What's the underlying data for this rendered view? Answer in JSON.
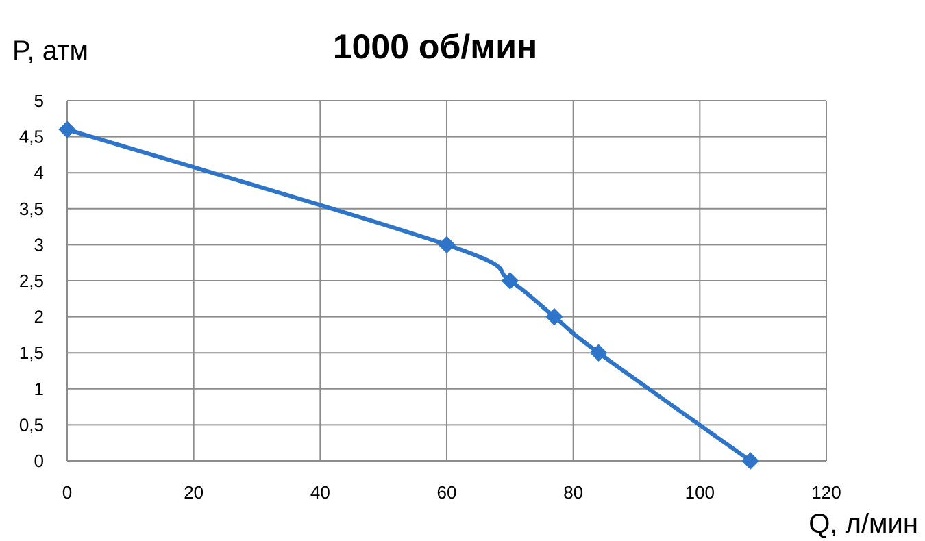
{
  "chart_data": {
    "type": "line",
    "title": "1000 об/мин",
    "ylabel": "P, атм",
    "xlabel": "Q, л/мин",
    "xlim": [
      0,
      120
    ],
    "ylim": [
      0,
      5
    ],
    "x_ticks": [
      "0",
      "20",
      "40",
      "60",
      "80",
      "100",
      "120"
    ],
    "y_ticks": [
      "0",
      "0,5",
      "1",
      "1,5",
      "2",
      "2,5",
      "3",
      "3,5",
      "4",
      "4,5",
      "5"
    ],
    "grid": true,
    "smooth": true,
    "marker": "diamond",
    "colors": {
      "series": "#2E75C9",
      "grid": "#8C8C8C"
    },
    "series": [
      {
        "x": [
          0,
          60,
          70,
          77,
          84,
          108
        ],
        "y": [
          4.6,
          3,
          2.5,
          2,
          1.5,
          0
        ]
      }
    ]
  }
}
